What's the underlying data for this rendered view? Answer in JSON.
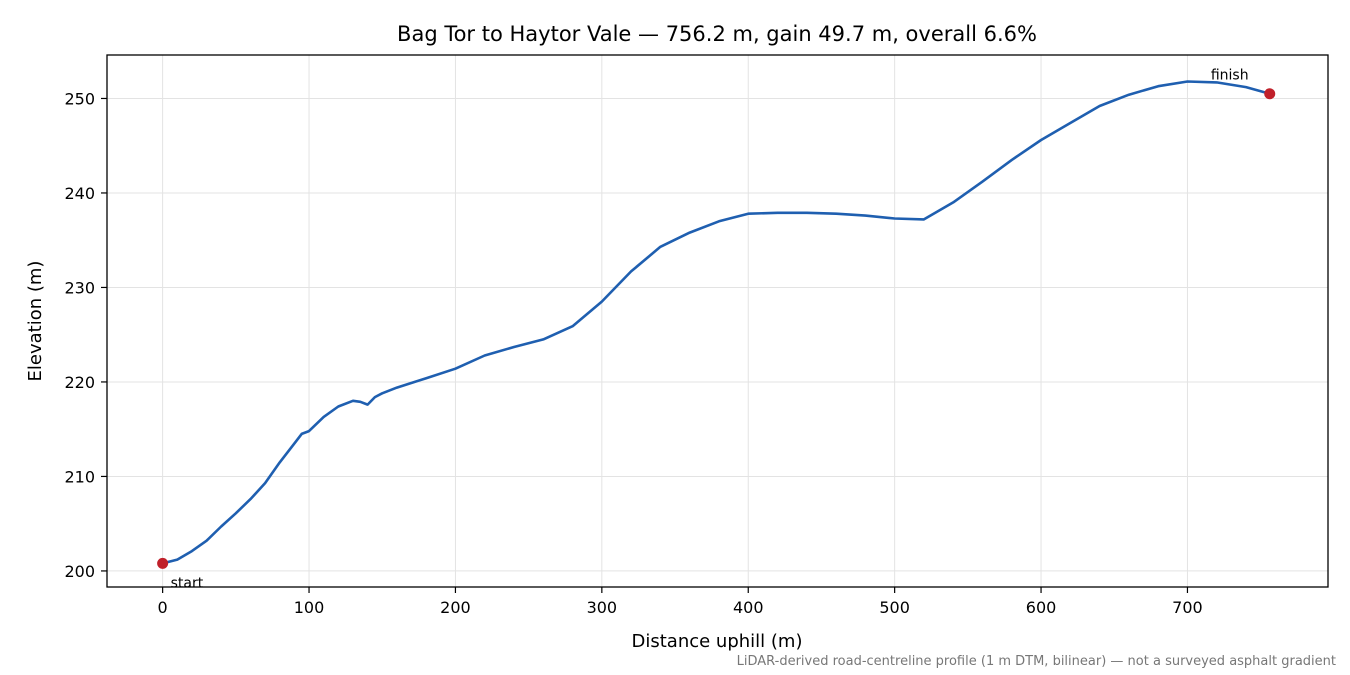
{
  "chart_data": {
    "type": "line",
    "title": "Bag Tor to Haytor Vale — 756.2 m, gain 49.7 m, overall 6.6%",
    "xlabel": "Distance uphill (m)",
    "ylabel": "Elevation (m)",
    "xlim": [
      -38,
      796
    ],
    "ylim": [
      198.3,
      254.6
    ],
    "xticks": [
      0,
      100,
      200,
      300,
      400,
      500,
      600,
      700
    ],
    "yticks": [
      200,
      210,
      220,
      230,
      240,
      250
    ],
    "grid": true,
    "line_color": "#1f5fb0",
    "marker_color": "#c0202a",
    "series": [
      {
        "x": [
          0,
          10,
          20,
          30,
          40,
          50,
          60,
          70,
          80,
          90,
          95,
          100,
          110,
          120,
          130,
          135,
          140,
          145,
          150,
          160,
          180,
          200,
          220,
          240,
          260,
          280,
          300,
          320,
          340,
          360,
          380,
          400,
          420,
          440,
          460,
          480,
          500,
          520,
          540,
          560,
          580,
          600,
          620,
          640,
          660,
          680,
          700,
          720,
          740,
          756.2
        ],
        "values": [
          200.8,
          201.2,
          202.1,
          203.2,
          204.7,
          206.1,
          207.6,
          209.3,
          211.5,
          213.5,
          214.5,
          214.8,
          216.3,
          217.4,
          218.0,
          217.9,
          217.6,
          218.4,
          218.8,
          219.4,
          220.4,
          221.4,
          222.8,
          223.7,
          224.5,
          225.9,
          228.5,
          231.7,
          234.3,
          235.8,
          237.0,
          237.8,
          237.9,
          237.9,
          237.8,
          237.6,
          237.3,
          237.2,
          239.0,
          241.2,
          243.5,
          245.6,
          247.4,
          249.2,
          250.4,
          251.3,
          251.8,
          251.7,
          251.2,
          250.5
        ]
      }
    ],
    "annotations": [
      {
        "label": "start",
        "x": 0,
        "y": 200.8
      },
      {
        "label": "finish",
        "x": 756.2,
        "y": 250.5
      }
    ],
    "footnote": "LiDAR-derived road-centreline profile (1 m DTM, bilinear) — not a surveyed asphalt gradient"
  }
}
